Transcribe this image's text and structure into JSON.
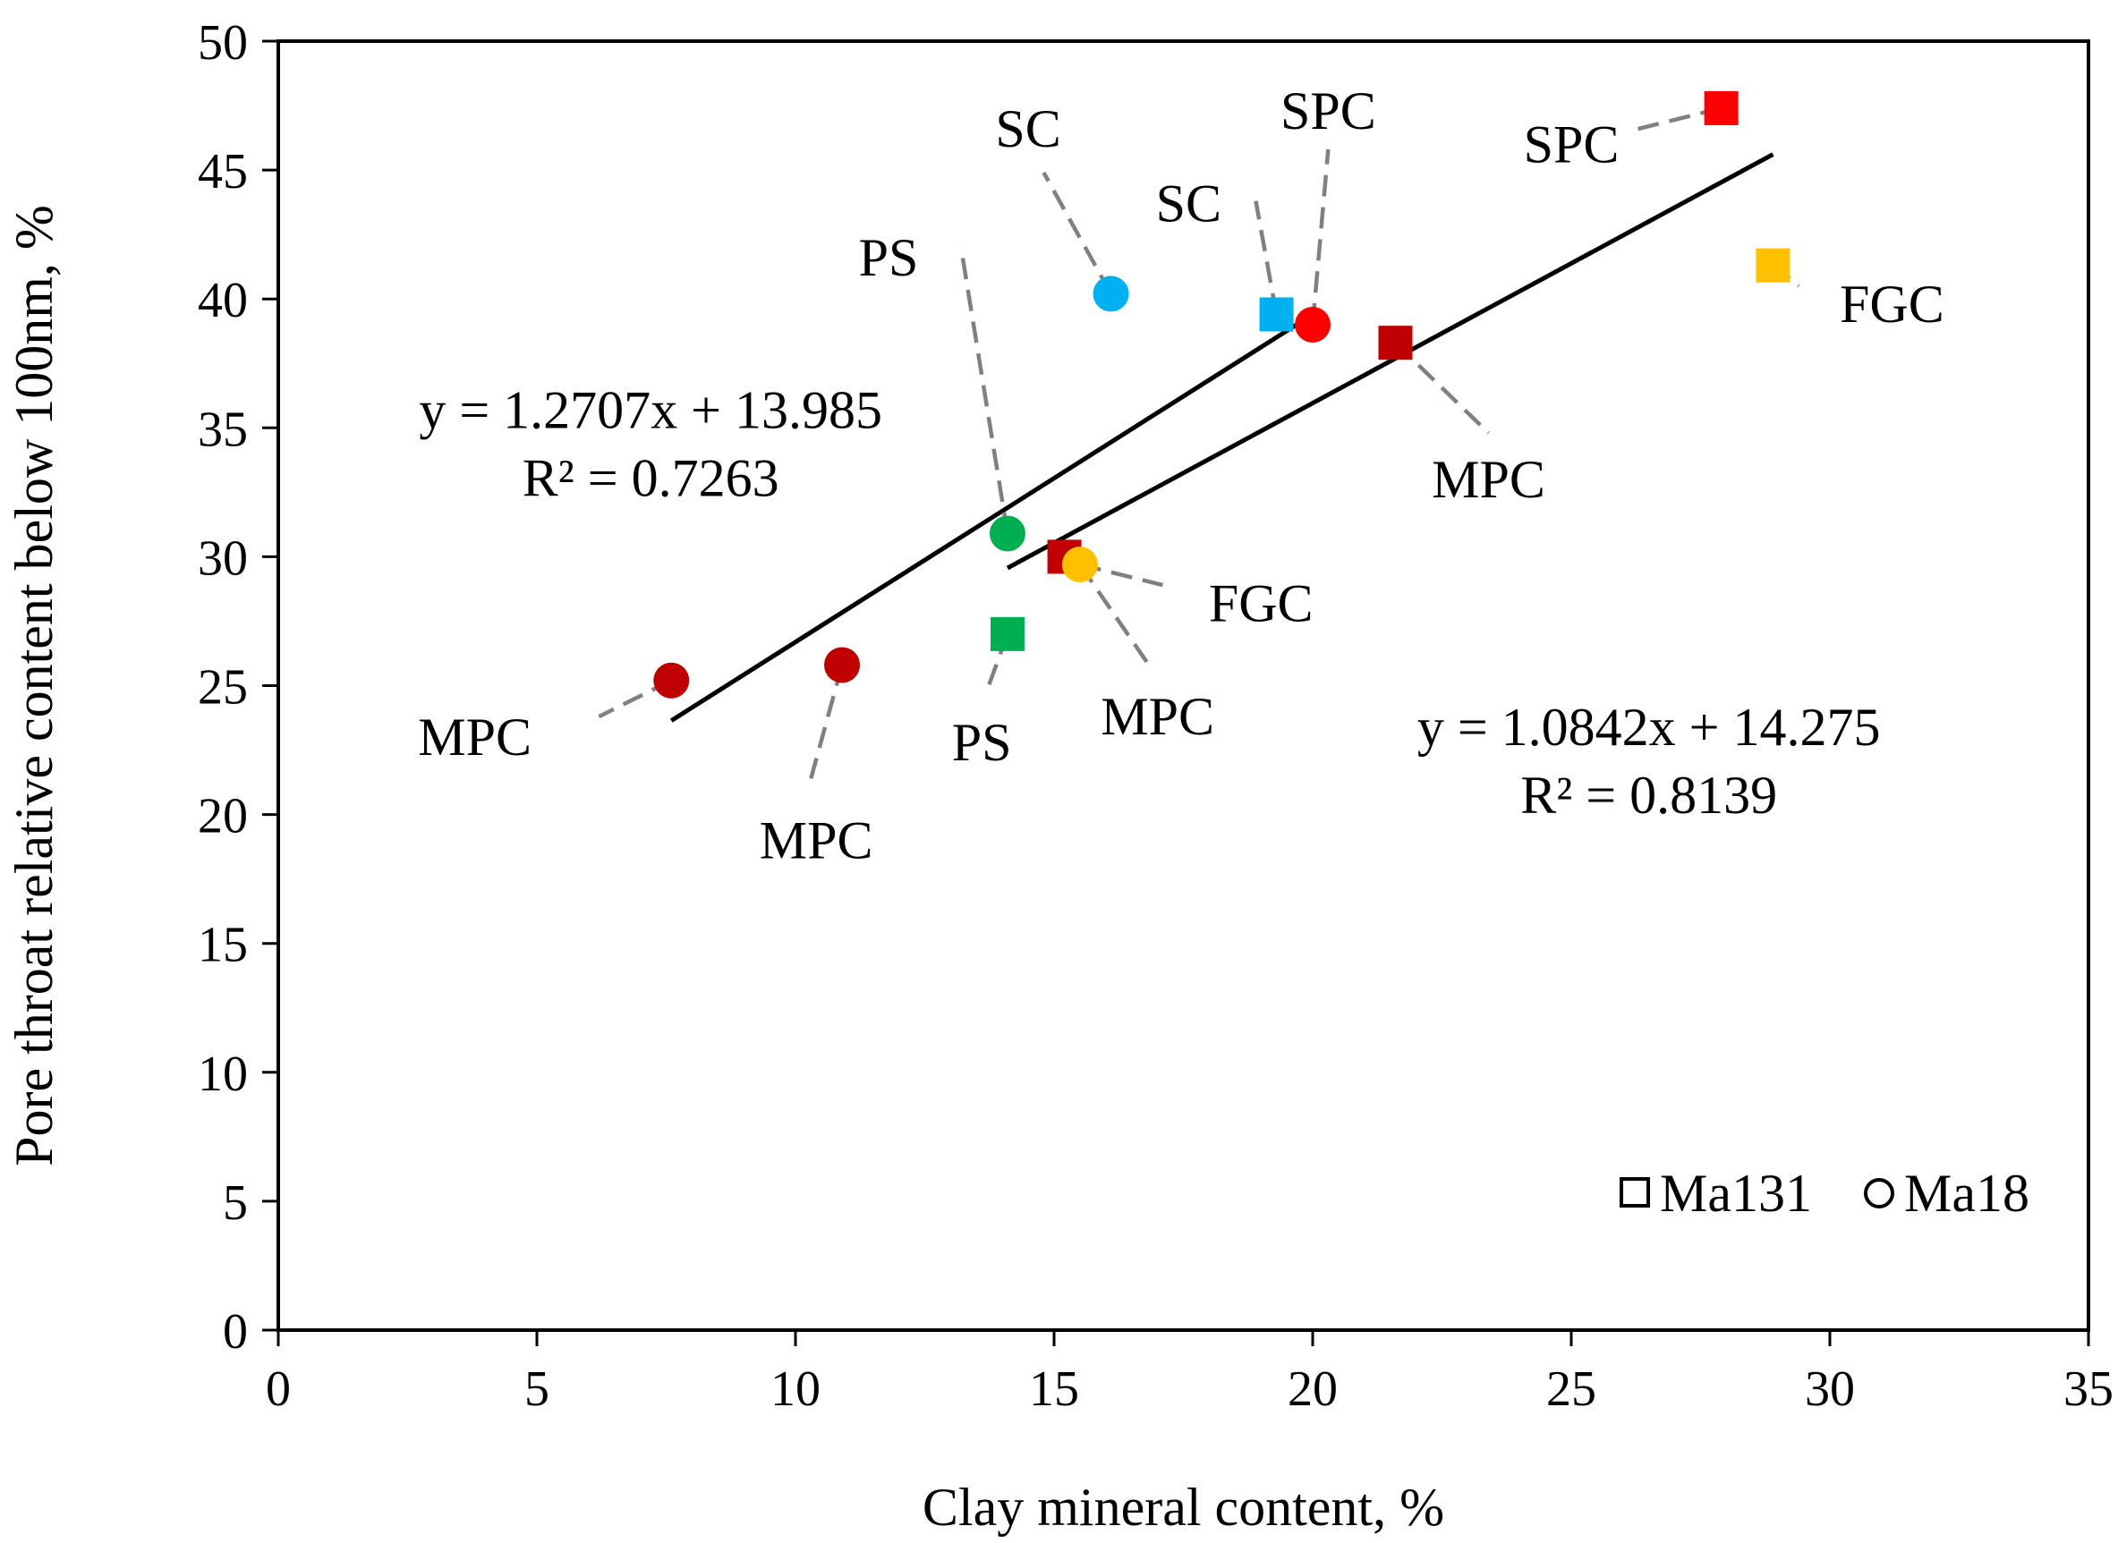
{
  "chart_data": {
    "type": "scatter",
    "title": "",
    "xlabel": "Clay mineral content, %",
    "ylabel": "Pore throat relative content below 100nm, %",
    "xlim": [
      0,
      35
    ],
    "ylim": [
      0,
      50
    ],
    "xticks": [
      0,
      5,
      10,
      15,
      20,
      25,
      30,
      35
    ],
    "yticks": [
      0,
      5,
      10,
      15,
      20,
      25,
      30,
      35,
      40,
      45,
      50
    ],
    "grid": false,
    "legend_position": "bottom-right",
    "series": [
      {
        "name": "Ma131",
        "marker": "square",
        "points": [
          {
            "x": 14.1,
            "y": 27.0,
            "label": "PS",
            "color": "#00b050"
          },
          {
            "x": 15.2,
            "y": 30.0,
            "label": "",
            "color": "#c00000"
          },
          {
            "x": 19.3,
            "y": 39.4,
            "label": "SC",
            "color": "#00b0f0"
          },
          {
            "x": 21.6,
            "y": 38.3,
            "label": "MPC",
            "color": "#c00000"
          },
          {
            "x": 27.9,
            "y": 47.4,
            "label": "SPC",
            "color": "#ff0000"
          },
          {
            "x": 28.9,
            "y": 41.3,
            "label": "FGC",
            "color": "#ffc000"
          }
        ],
        "trendline": {
          "slope": 1.0842,
          "intercept": 14.275,
          "x_range": [
            14.1,
            28.9
          ],
          "equation": "y = 1.0842x + 14.275",
          "r2": "R² = 0.8139"
        }
      },
      {
        "name": "Ma18",
        "marker": "circle",
        "points": [
          {
            "x": 7.6,
            "y": 25.2,
            "label": "MPC",
            "color": "#c00000"
          },
          {
            "x": 10.9,
            "y": 25.8,
            "label": "MPC",
            "color": "#c00000"
          },
          {
            "x": 14.1,
            "y": 30.9,
            "label": "PS",
            "color": "#00b050"
          },
          {
            "x": 15.5,
            "y": 29.7,
            "label": "FGC",
            "color": "#ffc000"
          },
          {
            "x": 16.1,
            "y": 40.2,
            "label": "SC",
            "color": "#00b0f0"
          },
          {
            "x": 20.0,
            "y": 39.0,
            "label": "SPC",
            "color": "#ff0000"
          }
        ],
        "trendline": {
          "slope": 1.2707,
          "intercept": 13.985,
          "x_range": [
            7.6,
            20.0
          ],
          "equation": "y = 1.2707x + 13.985",
          "r2": "R² = 0.7263"
        }
      }
    ],
    "point_annotations": [
      {
        "text": "MPC",
        "anchor": [
          7.6,
          25.2
        ],
        "bend": [
          6.2,
          23.8
        ],
        "text_pos": [
          3.8,
          23.0
        ],
        "align": "middle"
      },
      {
        "text": "MPC",
        "anchor": [
          10.9,
          25.8
        ],
        "bend": [
          10.3,
          21.4
        ],
        "text_pos": [
          10.4,
          19.0
        ],
        "align": "middle"
      },
      {
        "text": "PS",
        "anchor": [
          14.1,
          27.0
        ],
        "bend": [
          13.7,
          24.8
        ],
        "text_pos": [
          13.6,
          22.8
        ],
        "align": "middle"
      },
      {
        "text": "PS",
        "anchor": [
          14.1,
          30.9
        ],
        "bend": [
          13.2,
          42.0
        ],
        "text_pos": [
          11.8,
          41.6
        ],
        "align": "middle"
      },
      {
        "text": "FGC",
        "anchor": [
          15.5,
          29.7
        ],
        "bend": [
          17.1,
          28.9
        ],
        "text_pos": [
          19.0,
          28.2
        ],
        "align": "middle"
      },
      {
        "text": "MPC",
        "anchor": [
          15.5,
          29.7
        ],
        "bend": [
          16.9,
          25.6
        ],
        "text_pos": [
          17.0,
          23.8
        ],
        "align": "middle"
      },
      {
        "text": "SC",
        "anchor": [
          16.1,
          40.2
        ],
        "bend": [
          14.8,
          44.9
        ],
        "text_pos": [
          14.5,
          46.6
        ],
        "align": "middle"
      },
      {
        "text": "SC",
        "anchor": [
          19.3,
          39.4
        ],
        "bend": [
          18.9,
          43.8
        ],
        "text_pos": [
          17.6,
          43.7
        ],
        "align": "middle"
      },
      {
        "text": "SPC",
        "anchor": [
          20.0,
          39.0
        ],
        "bend": [
          20.3,
          45.8
        ],
        "text_pos": [
          20.3,
          47.3
        ],
        "align": "middle"
      },
      {
        "text": "MPC",
        "anchor": [
          21.6,
          38.3
        ],
        "bend": [
          23.4,
          34.8
        ],
        "text_pos": [
          23.4,
          33.0
        ],
        "align": "middle"
      },
      {
        "text": "SPC",
        "anchor": [
          27.9,
          47.4
        ],
        "bend": [
          26.1,
          46.5
        ],
        "text_pos": [
          25.0,
          46.0
        ],
        "align": "middle"
      },
      {
        "text": "FGC",
        "anchor": [
          28.9,
          41.3
        ],
        "bend": [
          29.4,
          40.5
        ],
        "text_pos": [
          31.2,
          39.8
        ],
        "align": "middle"
      }
    ],
    "equations": [
      {
        "series": "Ma18",
        "equation": "y = 1.2707x + 13.985",
        "r2": "R² = 0.7263",
        "pos": [
          7.2,
          35.0
        ]
      },
      {
        "series": "Ma131",
        "equation": "y = 1.0842x + 14.275",
        "r2": "R² = 0.8139",
        "pos": [
          26.5,
          22.7
        ]
      }
    ],
    "legend": [
      {
        "marker": "square",
        "label": "Ma131"
      },
      {
        "marker": "circle",
        "label": "Ma18"
      }
    ]
  }
}
